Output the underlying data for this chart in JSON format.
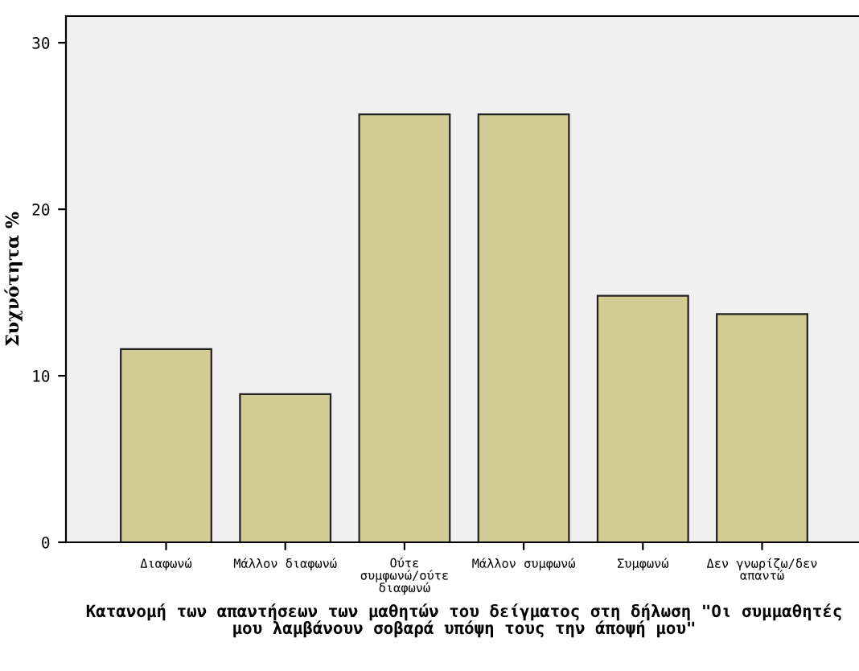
{
  "chart_data": {
    "type": "bar",
    "categories": [
      "Διαφωνώ",
      "Μάλλον διαφωνώ",
      "Ούτε\nσυμφωνώ/ούτε\nδιαφωνώ",
      "Μάλλον συμφωνώ",
      "Συμφωνώ",
      "Δεν γνωρίζω/δεν\nαπαντώ"
    ],
    "values": [
      11.6,
      8.9,
      25.7,
      25.7,
      14.8,
      13.7
    ],
    "color": "#d0cc94",
    "ylim": [
      0,
      31.6
    ],
    "yticks": [
      0,
      10,
      20,
      30
    ],
    "ylabel": "Συχνότητα %",
    "xlabel": "Κατανομή των απαντήσεων των μαθητών του δείγματος στη δήλωση \"Οι συμμαθητές μου λαμβάνουν σοβαρά υπόψη τους την άποψή μου\"",
    "grid": false,
    "legend": false
  }
}
